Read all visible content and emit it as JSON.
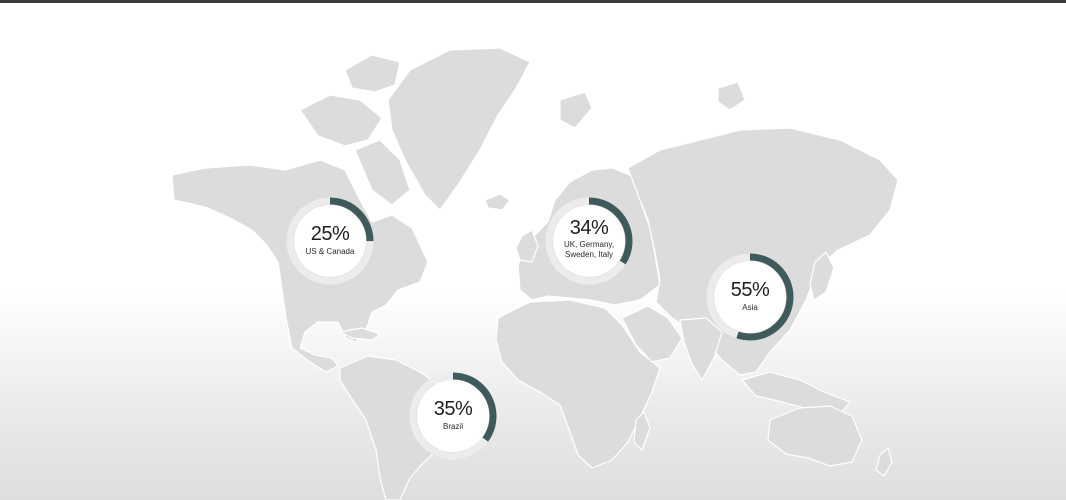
{
  "stats": [
    {
      "id": "us-canada",
      "value": "25%",
      "percent": 25,
      "label": "US & Canada"
    },
    {
      "id": "europe",
      "value": "34%",
      "percent": 34,
      "label": "UK, Germany, Sweden, Italy"
    },
    {
      "id": "asia",
      "value": "55%",
      "percent": 55,
      "label": "Asia"
    },
    {
      "id": "brazil",
      "value": "35%",
      "percent": 35,
      "label": "Brazil"
    }
  ],
  "colors": {
    "ring_fill": "#3f5a5a",
    "ring_track": "#ececec",
    "land": "#dcdcdc",
    "background": "#ffffff"
  }
}
